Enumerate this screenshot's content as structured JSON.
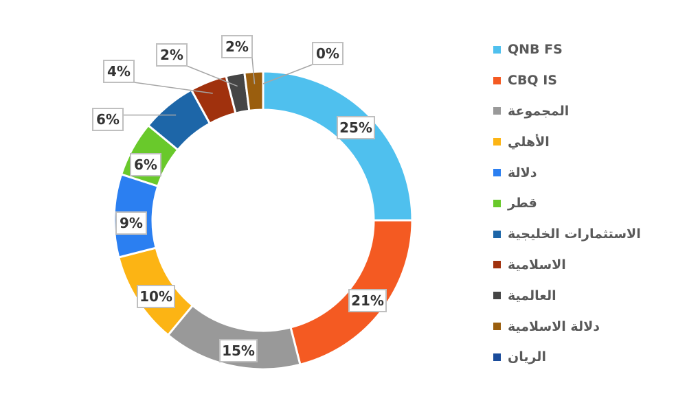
{
  "chart_data": {
    "type": "pie",
    "donut": true,
    "legend_position": "right",
    "series": [
      {
        "name": "QNB FS",
        "value": 25,
        "label": "25%",
        "color": "#4fc0ee"
      },
      {
        "name": "CBQ IS",
        "value": 21,
        "label": "21%",
        "color": "#f45a22"
      },
      {
        "name": "المجموعة",
        "value": 15,
        "label": "15%",
        "color": "#999999"
      },
      {
        "name": "الأهلي",
        "value": 10,
        "label": "10%",
        "color": "#fcb414"
      },
      {
        "name": "دلالة",
        "value": 9,
        "label": "9%",
        "color": "#2b7ff1"
      },
      {
        "name": "قطر",
        "value": 6,
        "label": "6%",
        "color": "#69c92b"
      },
      {
        "name": "الاستثمارات الخليجية",
        "value": 6,
        "label": "6%",
        "color": "#1d66a8"
      },
      {
        "name": "الاسلامية",
        "value": 4,
        "label": "4%",
        "color": "#a0310d"
      },
      {
        "name": "العالمية",
        "value": 2,
        "label": "2%",
        "color": "#454545"
      },
      {
        "name": "دلالة الاسلامية",
        "value": 2,
        "label": "2%",
        "color": "#9a5e0e"
      },
      {
        "name": "الريان",
        "value": 0,
        "label": "0%",
        "color": "#1a4c9b"
      }
    ]
  }
}
